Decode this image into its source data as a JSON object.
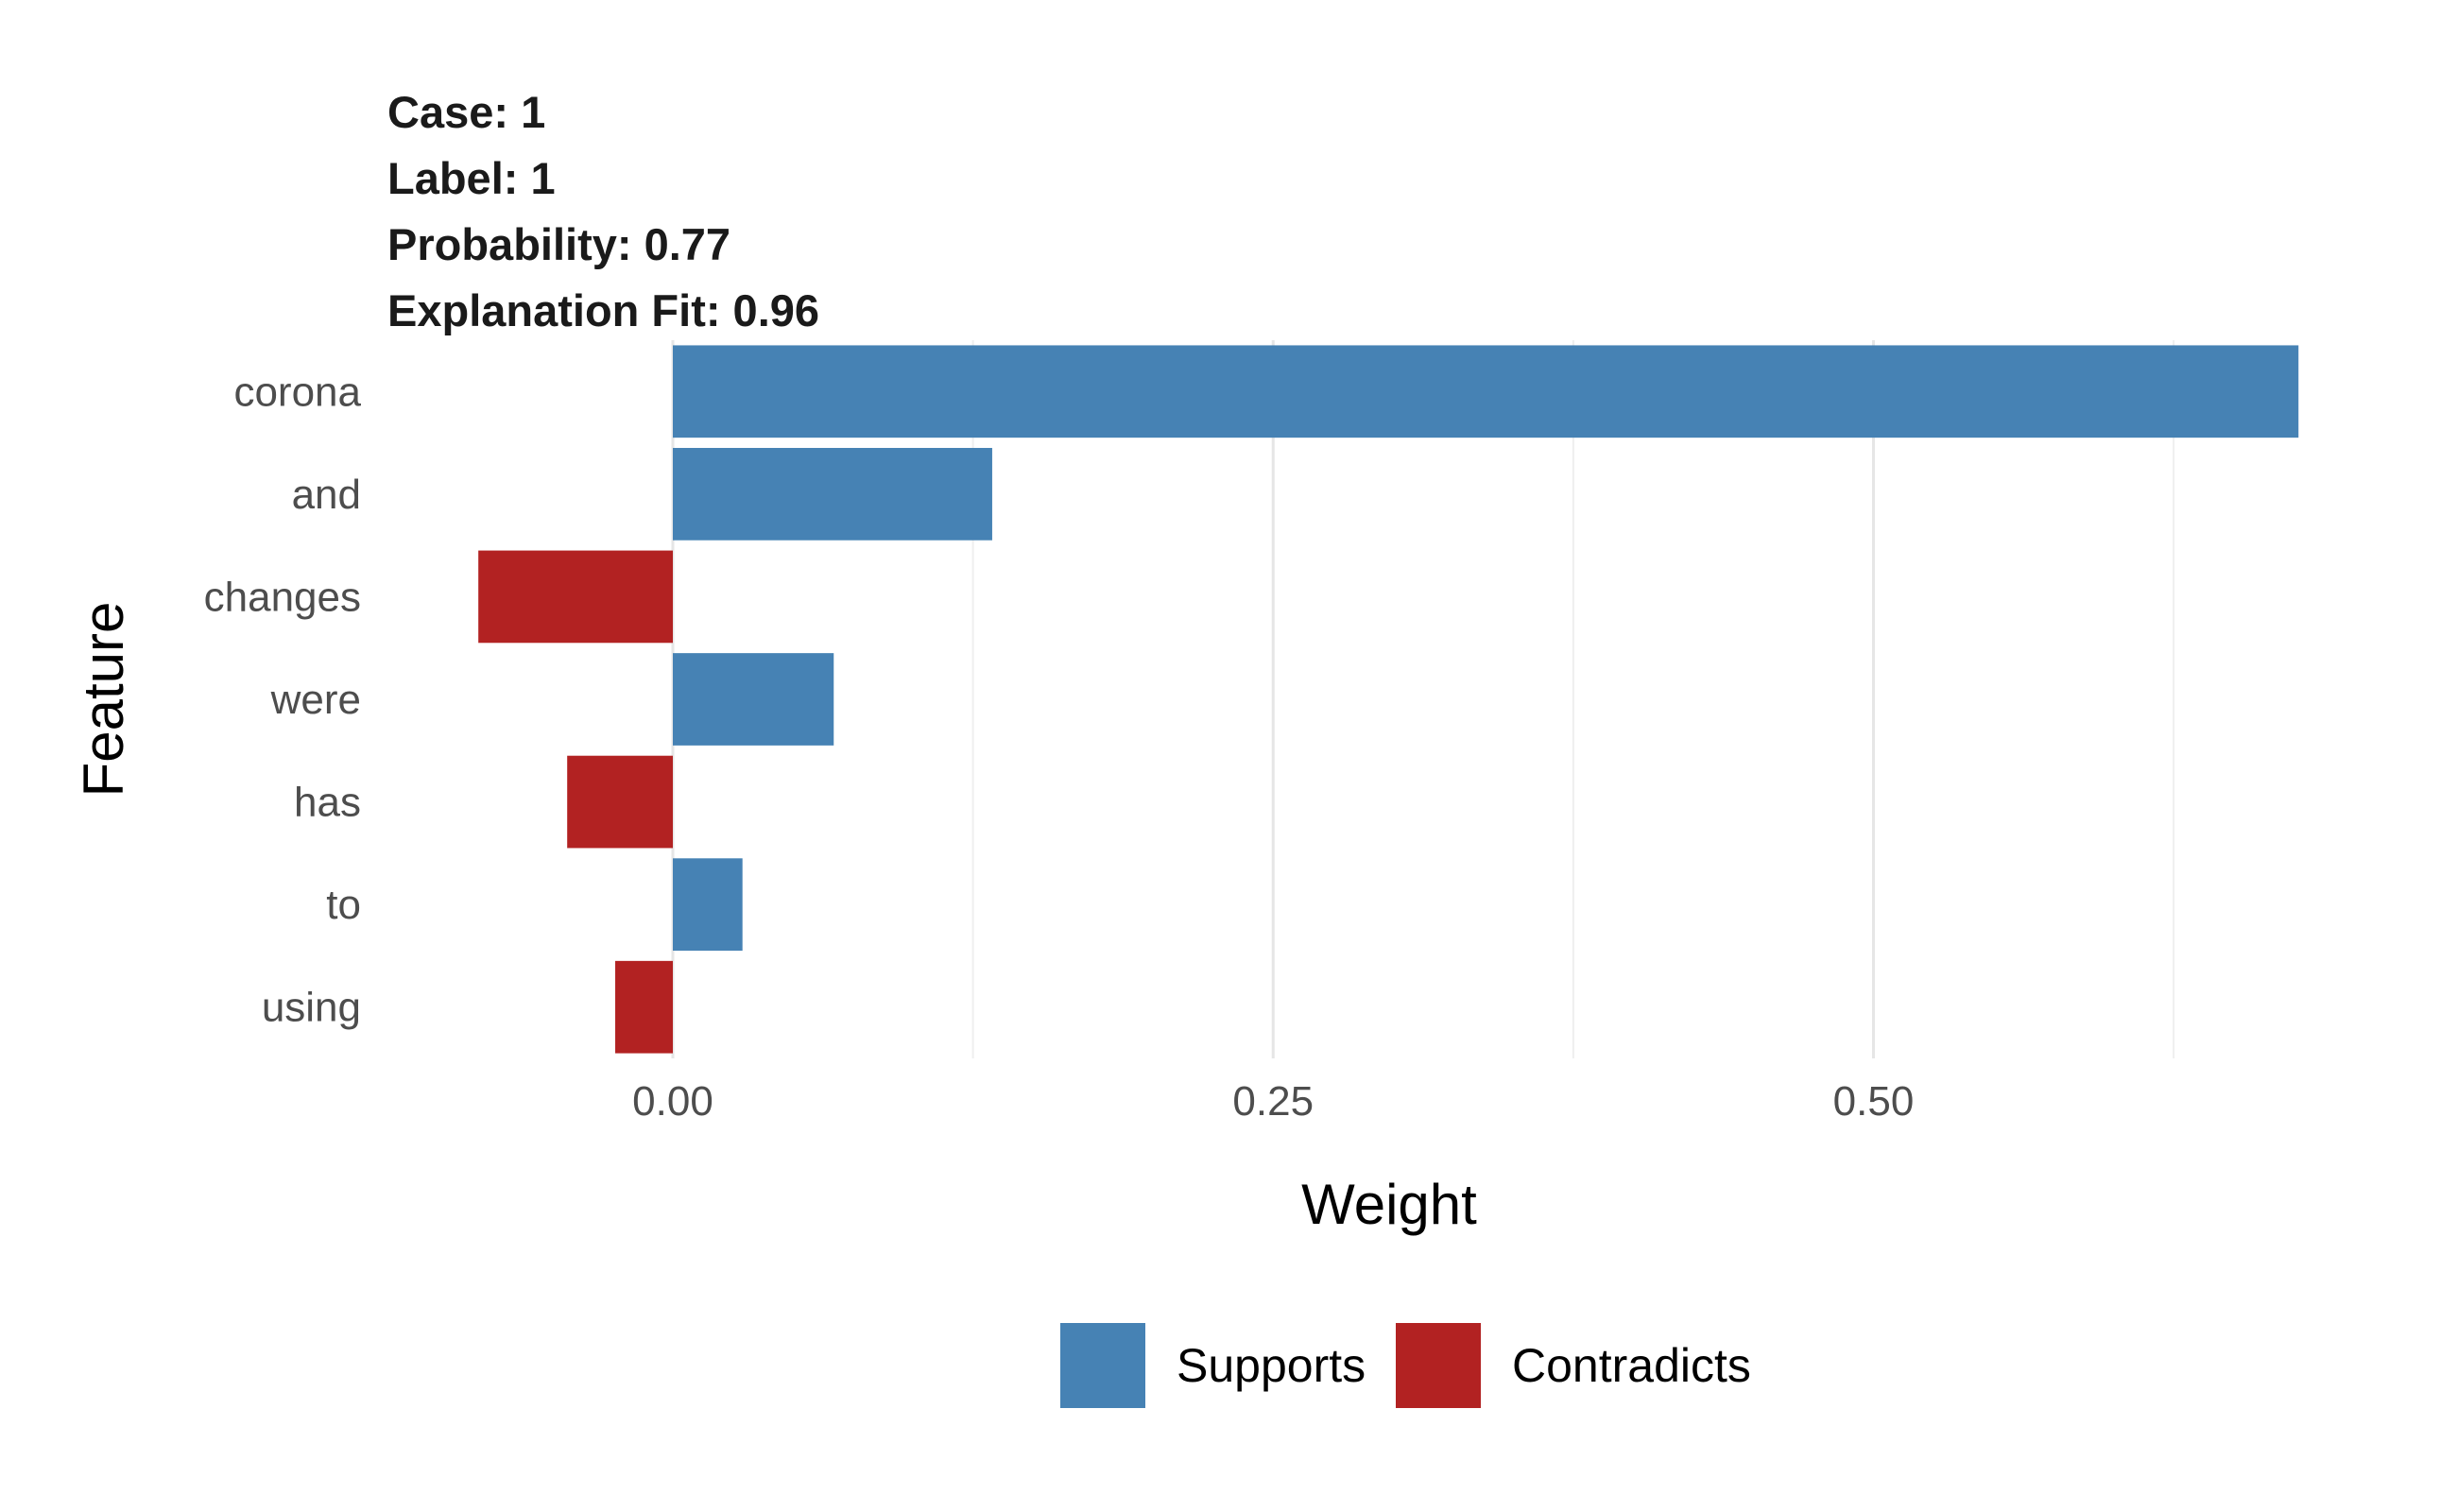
{
  "header": {
    "lines": [
      "Case: 1",
      "Label: 1",
      "Probability: 0.77",
      "Explanation Fit: 0.96"
    ]
  },
  "chart_data": {
    "type": "bar",
    "orientation": "horizontal",
    "categories": [
      "corona",
      "and",
      "changes",
      "were",
      "has",
      "to",
      "using"
    ],
    "values": [
      0.677,
      0.133,
      -0.081,
      0.067,
      -0.044,
      0.029,
      -0.024
    ],
    "value_classes": [
      "Supports",
      "Supports",
      "Contradicts",
      "Supports",
      "Contradicts",
      "Supports",
      "Contradicts"
    ],
    "xlabel": "Weight",
    "ylabel": "Feature",
    "xlim": [
      -0.12,
      0.685
    ],
    "xticks": [
      0.0,
      0.25,
      0.5
    ],
    "xtick_labels": [
      "0.00",
      "0.25",
      "0.50"
    ],
    "minor_gridlines": [
      0.125,
      0.375,
      0.625
    ],
    "grid": true,
    "legend": {
      "position": "bottom",
      "entries": [
        {
          "label": "Supports",
          "color": "#4682B4"
        },
        {
          "label": "Contradicts",
          "color": "#B22222"
        }
      ]
    }
  }
}
